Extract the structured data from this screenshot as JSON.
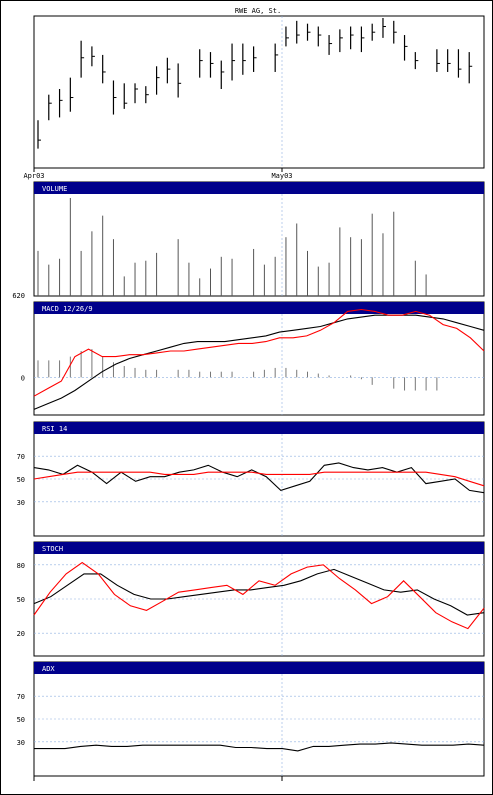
{
  "chart_data": [
    {
      "type": "ohlc",
      "title": "RWE AG, St.",
      "x_tick_labels": [
        "Apr03",
        "May03"
      ],
      "ylim": [
        0,
        100
      ],
      "bars": [
        {
          "i": 0,
          "high": 28,
          "low": 8,
          "close": 14
        },
        {
          "i": 1,
          "high": 46,
          "low": 28,
          "close": 40
        },
        {
          "i": 2,
          "high": 50,
          "low": 30,
          "close": 42
        },
        {
          "i": 3,
          "high": 58,
          "low": 34,
          "close": 44
        },
        {
          "i": 4,
          "high": 84,
          "low": 58,
          "close": 72
        },
        {
          "i": 5,
          "high": 80,
          "low": 66,
          "close": 73
        },
        {
          "i": 6,
          "high": 74,
          "low": 54,
          "close": 62
        },
        {
          "i": 7,
          "high": 56,
          "low": 32,
          "close": 44
        },
        {
          "i": 8,
          "high": 54,
          "low": 36,
          "close": 40
        },
        {
          "i": 9,
          "high": 54,
          "low": 40,
          "close": 50
        },
        {
          "i": 10,
          "high": 52,
          "low": 40,
          "close": 46
        },
        {
          "i": 11,
          "high": 66,
          "low": 46,
          "close": 58
        },
        {
          "i": 12,
          "high": 72,
          "low": 54,
          "close": 64
        },
        {
          "i": 13,
          "high": 68,
          "low": 44,
          "close": 54
        },
        {
          "i": 15,
          "high": 78,
          "low": 58,
          "close": 70
        },
        {
          "i": 16,
          "high": 76,
          "low": 58,
          "close": 68
        },
        {
          "i": 17,
          "high": 70,
          "low": 50,
          "close": 62
        },
        {
          "i": 18,
          "high": 82,
          "low": 56,
          "close": 70
        },
        {
          "i": 19,
          "high": 82,
          "low": 60,
          "close": 70
        },
        {
          "i": 20,
          "high": 80,
          "low": 62,
          "close": 72
        },
        {
          "i": 22,
          "high": 82,
          "low": 62,
          "close": 74
        },
        {
          "i": 23,
          "high": 94,
          "low": 80,
          "close": 86
        },
        {
          "i": 24,
          "high": 98,
          "low": 82,
          "close": 88
        },
        {
          "i": 25,
          "high": 96,
          "low": 84,
          "close": 90
        },
        {
          "i": 26,
          "high": 94,
          "low": 80,
          "close": 88
        },
        {
          "i": 27,
          "high": 88,
          "low": 74,
          "close": 82
        },
        {
          "i": 28,
          "high": 92,
          "low": 76,
          "close": 86
        },
        {
          "i": 29,
          "high": 94,
          "low": 78,
          "close": 88
        },
        {
          "i": 30,
          "high": 94,
          "low": 76,
          "close": 86
        },
        {
          "i": 31,
          "high": 96,
          "low": 84,
          "close": 90
        },
        {
          "i": 32,
          "high": 100,
          "low": 86,
          "close": 94
        },
        {
          "i": 33,
          "high": 98,
          "low": 82,
          "close": 90
        },
        {
          "i": 34,
          "high": 88,
          "low": 70,
          "close": 80
        },
        {
          "i": 35,
          "high": 76,
          "low": 64,
          "close": 70
        },
        {
          "i": 37,
          "high": 78,
          "low": 62,
          "close": 68
        },
        {
          "i": 38,
          "high": 78,
          "low": 62,
          "close": 68
        },
        {
          "i": 39,
          "high": 78,
          "low": 58,
          "close": 64
        },
        {
          "i": 40,
          "high": 76,
          "low": 54,
          "close": 66
        }
      ]
    },
    {
      "type": "bar",
      "title": "VOLUME",
      "y_tick_labels": [
        "620"
      ],
      "ylim": [
        0,
        100
      ],
      "values": [
        {
          "i": 0,
          "v": 46
        },
        {
          "i": 1,
          "v": 32
        },
        {
          "i": 2,
          "v": 38
        },
        {
          "i": 3,
          "v": 100
        },
        {
          "i": 4,
          "v": 46
        },
        {
          "i": 5,
          "v": 66
        },
        {
          "i": 6,
          "v": 82
        },
        {
          "i": 7,
          "v": 58
        },
        {
          "i": 8,
          "v": 20
        },
        {
          "i": 9,
          "v": 34
        },
        {
          "i": 10,
          "v": 36
        },
        {
          "i": 11,
          "v": 44
        },
        {
          "i": 13,
          "v": 58
        },
        {
          "i": 14,
          "v": 34
        },
        {
          "i": 15,
          "v": 18
        },
        {
          "i": 16,
          "v": 28
        },
        {
          "i": 17,
          "v": 40
        },
        {
          "i": 18,
          "v": 38
        },
        {
          "i": 20,
          "v": 48
        },
        {
          "i": 21,
          "v": 32
        },
        {
          "i": 22,
          "v": 40
        },
        {
          "i": 23,
          "v": 60
        },
        {
          "i": 24,
          "v": 74
        },
        {
          "i": 25,
          "v": 46
        },
        {
          "i": 26,
          "v": 30
        },
        {
          "i": 27,
          "v": 34
        },
        {
          "i": 28,
          "v": 70
        },
        {
          "i": 29,
          "v": 60
        },
        {
          "i": 30,
          "v": 58
        },
        {
          "i": 31,
          "v": 84
        },
        {
          "i": 32,
          "v": 64
        },
        {
          "i": 33,
          "v": 86
        },
        {
          "i": 35,
          "v": 36
        },
        {
          "i": 36,
          "v": 22
        },
        {
          "i": 37,
          "v": 0
        }
      ]
    },
    {
      "type": "line",
      "title": "MACD 12/26/9",
      "y_tick_labels": [
        "0"
      ],
      "ylim": [
        -40,
        80
      ],
      "series": [
        {
          "color": "#000000",
          "values": [
            -34,
            -28,
            -22,
            -14,
            -4,
            6,
            14,
            20,
            24,
            28,
            32,
            36,
            38,
            38,
            38,
            40,
            42,
            44,
            48,
            50,
            52,
            54,
            58,
            62,
            64,
            66,
            66,
            66,
            66,
            64,
            62,
            58,
            54,
            50
          ]
        },
        {
          "color": "#ff0000",
          "values": [
            -20,
            -12,
            -4,
            22,
            30,
            22,
            22,
            24,
            24,
            26,
            28,
            28,
            30,
            32,
            34,
            36,
            36,
            38,
            42,
            42,
            44,
            50,
            58,
            70,
            72,
            70,
            66,
            66,
            70,
            66,
            56,
            52,
            42,
            28
          ]
        }
      ],
      "histogram": [
        {
          "i": 0,
          "v": 18
        },
        {
          "i": 1,
          "v": 18
        },
        {
          "i": 2,
          "v": 18
        },
        {
          "i": 3,
          "v": 22
        },
        {
          "i": 4,
          "v": 28
        },
        {
          "i": 5,
          "v": 30
        },
        {
          "i": 6,
          "v": 22
        },
        {
          "i": 7,
          "v": 16
        },
        {
          "i": 8,
          "v": 12
        },
        {
          "i": 9,
          "v": 10
        },
        {
          "i": 10,
          "v": 8
        },
        {
          "i": 11,
          "v": 8
        },
        {
          "i": 13,
          "v": 8
        },
        {
          "i": 14,
          "v": 8
        },
        {
          "i": 15,
          "v": 6
        },
        {
          "i": 16,
          "v": 6
        },
        {
          "i": 17,
          "v": 6
        },
        {
          "i": 18,
          "v": 6
        },
        {
          "i": 20,
          "v": 6
        },
        {
          "i": 21,
          "v": 8
        },
        {
          "i": 22,
          "v": 10
        },
        {
          "i": 23,
          "v": 10
        },
        {
          "i": 24,
          "v": 8
        },
        {
          "i": 25,
          "v": 6
        },
        {
          "i": 26,
          "v": 4
        },
        {
          "i": 27,
          "v": 2
        },
        {
          "i": 29,
          "v": 2
        },
        {
          "i": 30,
          "v": -2
        },
        {
          "i": 31,
          "v": -8
        },
        {
          "i": 33,
          "v": -12
        },
        {
          "i": 34,
          "v": -14
        },
        {
          "i": 35,
          "v": -14
        },
        {
          "i": 36,
          "v": -14
        },
        {
          "i": 37,
          "v": -14
        }
      ]
    },
    {
      "type": "line",
      "title": "RSI 14",
      "y_tick_labels": [
        "70",
        "50",
        "30"
      ],
      "ylim": [
        0,
        100
      ],
      "series": [
        {
          "color": "#000000",
          "values": [
            60,
            58,
            54,
            62,
            56,
            46,
            56,
            48,
            52,
            52,
            56,
            58,
            62,
            56,
            52,
            58,
            52,
            40,
            44,
            48,
            62,
            64,
            60,
            58,
            60,
            56,
            60,
            46,
            48,
            50,
            40,
            38
          ]
        },
        {
          "color": "#ff0000",
          "values": [
            50,
            52,
            54,
            56,
            56,
            56,
            56,
            56,
            56,
            54,
            54,
            54,
            56,
            56,
            56,
            56,
            54,
            54,
            54,
            54,
            56,
            56,
            56,
            56,
            56,
            56,
            56,
            56,
            54,
            52,
            48,
            44
          ]
        }
      ]
    },
    {
      "type": "line",
      "title": "STOCH",
      "y_tick_labels": [
        "80",
        "50",
        "20"
      ],
      "ylim": [
        0,
        100
      ],
      "series": [
        {
          "color": "#000000",
          "values": [
            46,
            52,
            62,
            72,
            72,
            62,
            54,
            50,
            50,
            52,
            54,
            56,
            58,
            58,
            60,
            62,
            66,
            72,
            76,
            70,
            64,
            58,
            56,
            58,
            50,
            44,
            36,
            38
          ]
        },
        {
          "color": "#ff0000",
          "values": [
            36,
            56,
            72,
            82,
            72,
            54,
            44,
            40,
            48,
            56,
            58,
            60,
            62,
            54,
            66,
            62,
            72,
            78,
            80,
            68,
            58,
            46,
            52,
            66,
            52,
            38,
            30,
            24,
            42
          ]
        }
      ]
    },
    {
      "type": "line",
      "title": "ADX",
      "y_tick_labels": [
        "70",
        "50",
        "30"
      ],
      "ylim": [
        0,
        100
      ],
      "series": [
        {
          "color": "#000000",
          "values": [
            24,
            24,
            24,
            26,
            27,
            26,
            26,
            27,
            27,
            27,
            27,
            27,
            27,
            25,
            25,
            24,
            24,
            22,
            26,
            26,
            27,
            28,
            28,
            29,
            28,
            27,
            27,
            27,
            28,
            27
          ]
        }
      ]
    }
  ]
}
